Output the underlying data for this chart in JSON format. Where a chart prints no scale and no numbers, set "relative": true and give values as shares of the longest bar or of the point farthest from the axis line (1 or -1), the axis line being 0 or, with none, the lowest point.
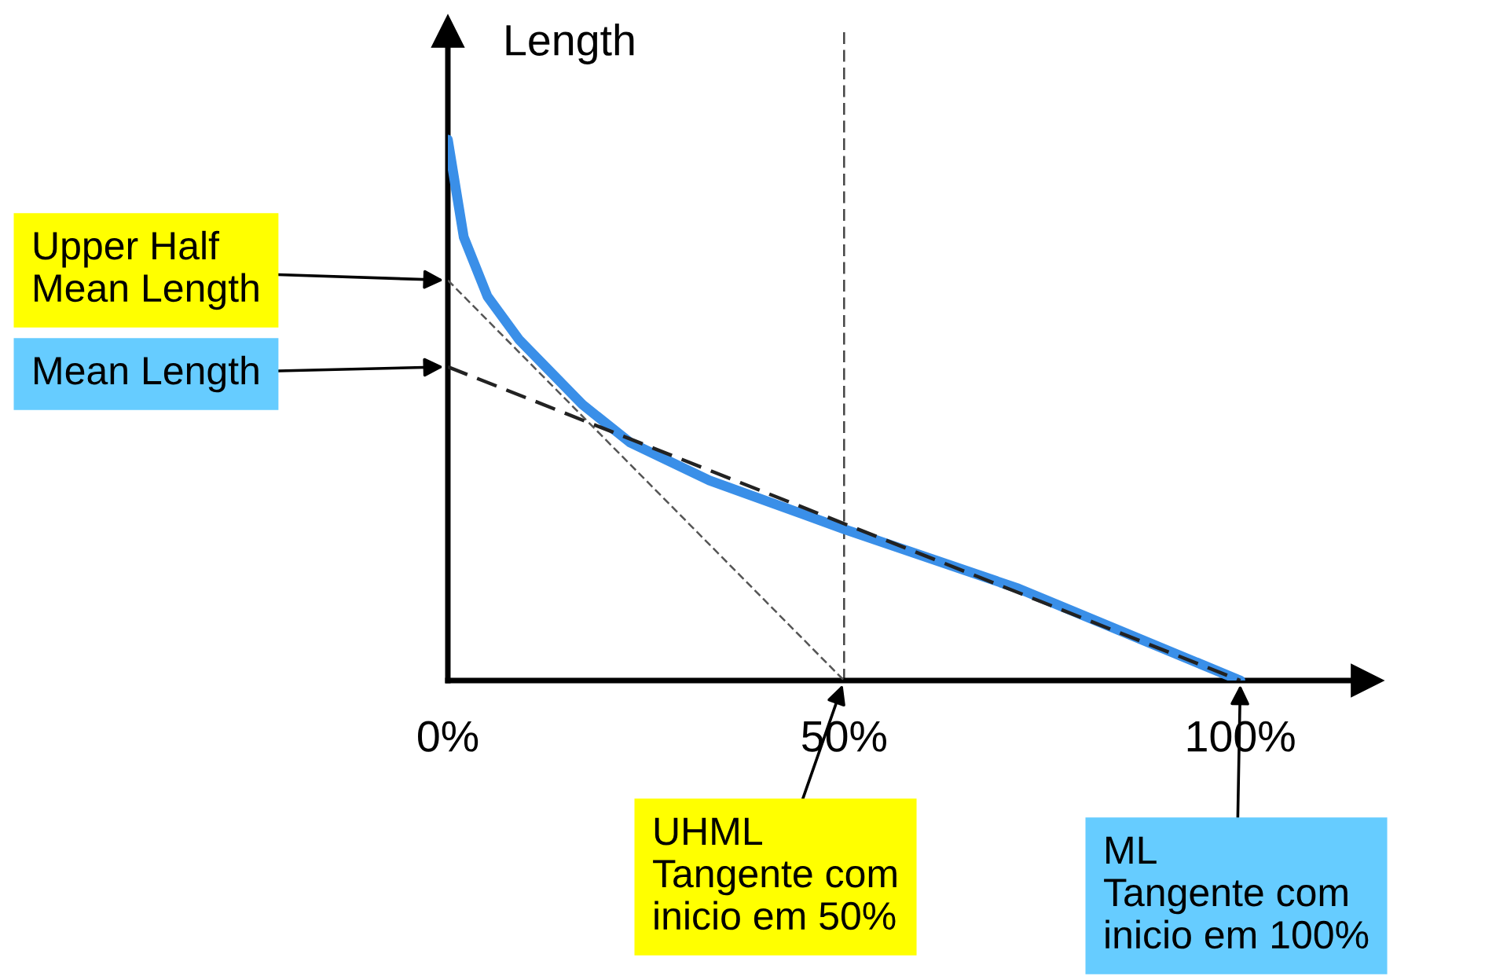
{
  "chart_data": {
    "type": "line",
    "relative": true,
    "ylabel": "Length",
    "x": [
      0,
      2,
      5,
      9,
      17,
      23,
      33,
      50,
      72,
      100
    ],
    "xlim": [
      0,
      116
    ],
    "xticks": [
      {
        "value": 0,
        "label": "0%"
      },
      {
        "value": 50,
        "label": "50%"
      },
      {
        "value": 100,
        "label": "100%"
      }
    ],
    "tick_labels": "x",
    "grid": false,
    "legend": false,
    "marker": "none",
    "series": [
      {
        "color": "#3a8fe8",
        "line_style": "solid",
        "values": [
          1.0,
          0.82,
          0.71,
          0.63,
          0.51,
          0.44,
          0.37,
          0.28,
          0.17,
          0.0
        ]
      },
      {
        "color": "#555555",
        "line_style": "dotted",
        "x": [
          0,
          50
        ],
        "values": [
          0.74,
          0.0
        ]
      },
      {
        "color": "#222222",
        "line_style": "dashed",
        "x": [
          0,
          100
        ],
        "values": [
          0.58,
          0.0
        ]
      }
    ],
    "ref_lines": [
      {
        "axis": "x",
        "value": 50,
        "color": "#444444",
        "line_style": "dashed"
      }
    ],
    "annotations": [
      {
        "text": "Upper Half\nMean Length",
        "x": 0,
        "y": 0.74
      },
      {
        "text": "Mean Length",
        "x": 0,
        "y": 0.58
      },
      {
        "text": "UHML\nTangente com\ninicio em 50%",
        "x": 50,
        "y": 0
      },
      {
        "text": "ML\nTangente com\ninicio em 100%",
        "x": 100,
        "y": 0
      }
    ]
  }
}
